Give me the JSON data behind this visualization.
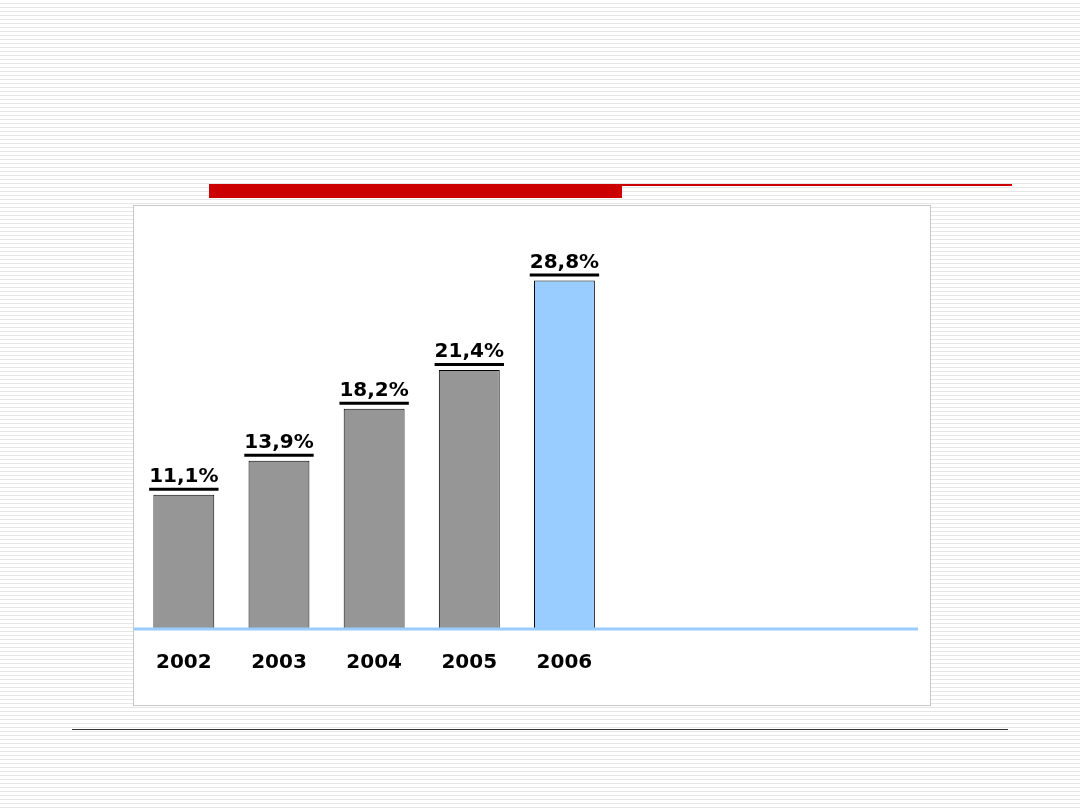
{
  "chart_data": {
    "type": "bar",
    "categories": [
      "2002",
      "2003",
      "2004",
      "2005",
      "2006"
    ],
    "values": [
      11.1,
      13.9,
      18.2,
      21.4,
      28.8
    ],
    "colors": [
      "#969696",
      "#969696",
      "#969696",
      "#969696",
      "#99ccff"
    ],
    "value_labels": [
      "11,1%",
      "13,9%",
      "18,2%",
      "21,4%",
      "28,8%"
    ],
    "grid": false,
    "legend": false
  }
}
